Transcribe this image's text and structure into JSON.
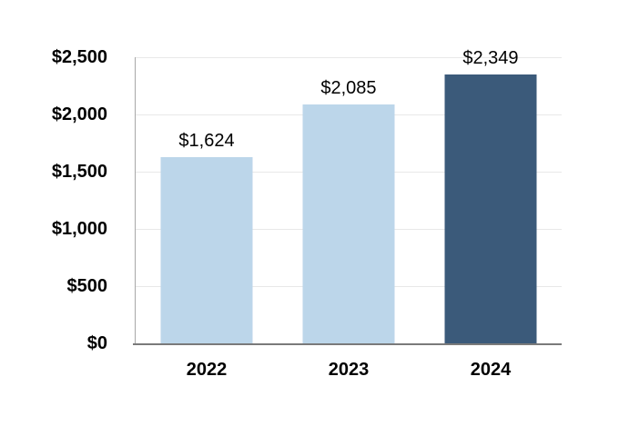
{
  "chart_data": {
    "type": "bar",
    "title": "",
    "xlabel": "",
    "ylabel": "",
    "categories": [
      "2022",
      "2023",
      "2024"
    ],
    "values": [
      1624,
      2085,
      2349
    ],
    "value_labels": [
      "$1,624",
      "$2,085",
      "$2,349"
    ],
    "bar_colors": [
      "#BCD6EA",
      "#BCD6EA",
      "#3B5A7A"
    ],
    "ylim": [
      0,
      2500
    ],
    "y_ticks": [
      0,
      500,
      1000,
      1500,
      2000,
      2500
    ],
    "y_tick_labels": [
      "$0",
      "$500",
      "$1,000",
      "$1,500",
      "$2,000",
      "$2,500"
    ],
    "grid": true,
    "legend_position": "none",
    "colors": {
      "light_bar": "#BCD6EA",
      "dark_bar": "#3B5A7A",
      "gridline": "#E8E8E8",
      "y_axis_line": "#A8A8A8",
      "x_axis_line": "#7A7A7A",
      "label_text": "#000000",
      "background": "#FFFFFF"
    }
  }
}
